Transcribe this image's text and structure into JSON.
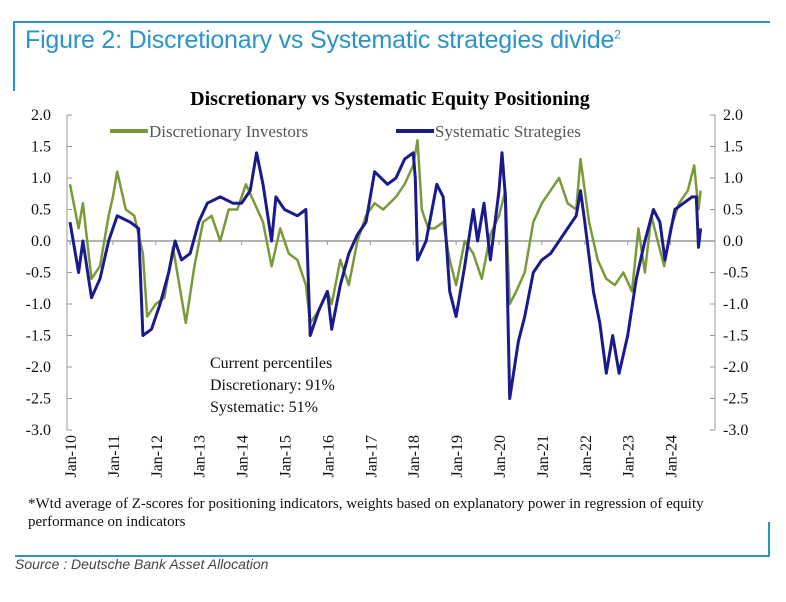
{
  "figure": {
    "title": "Figure 2: Discretionary vs Systematic strategies divide",
    "title_sup": "2",
    "footnote": "*Wtd average of Z-scores for positioning indicators, weights based on explanatory power in regression of equity performance on indicators",
    "source": "Source : Deutsche Bank Asset Allocation",
    "accent_color": "#2a93c8"
  },
  "annotation": {
    "line1": "Current percentiles",
    "line2": "Discretionary: 91%",
    "line3": "Systematic: 51%"
  },
  "chart_data": {
    "type": "line",
    "title": "Discretionary  vs Systematic Equity Positioning",
    "xlim": [
      2010,
      2024.75
    ],
    "ylim": [
      -3.0,
      2.0
    ],
    "yticks": [
      "2.0",
      "1.5",
      "1.0",
      "0.5",
      "0.0",
      "-0.5",
      "-1.0",
      "-1.5",
      "-2.0",
      "-2.5",
      "-3.0"
    ],
    "ytick_values": [
      2.0,
      1.5,
      1.0,
      0.5,
      0.0,
      -0.5,
      -1.0,
      -1.5,
      -2.0,
      -2.5,
      -3.0
    ],
    "xticks": [
      "Jan-10",
      "Jan-11",
      "Jan-12",
      "Jan-13",
      "Jan-14",
      "Jan-15",
      "Jan-16",
      "Jan-17",
      "Jan-18",
      "Jan-19",
      "Jan-20",
      "Jan-21",
      "Jan-22",
      "Jan-23",
      "Jan-24"
    ],
    "xtick_values": [
      2010,
      2011,
      2012,
      2013,
      2014,
      2015,
      2016,
      2017,
      2018,
      2019,
      2020,
      2021,
      2022,
      2023,
      2024
    ],
    "dual_y_axis": true,
    "zero_line": true,
    "grid": false,
    "legend_position": "top",
    "series": [
      {
        "name": "Discretionary Investors",
        "color": "#7a9a3a",
        "points": [
          [
            2010.0,
            0.9
          ],
          [
            2010.2,
            0.2
          ],
          [
            2010.3,
            0.6
          ],
          [
            2010.5,
            -0.6
          ],
          [
            2010.7,
            -0.4
          ],
          [
            2010.9,
            0.4
          ],
          [
            2011.0,
            0.7
          ],
          [
            2011.1,
            1.1
          ],
          [
            2011.3,
            0.5
          ],
          [
            2011.5,
            0.4
          ],
          [
            2011.7,
            -0.2
          ],
          [
            2011.8,
            -1.2
          ],
          [
            2012.0,
            -1.0
          ],
          [
            2012.2,
            -0.9
          ],
          [
            2012.4,
            -0.1
          ],
          [
            2012.6,
            -0.9
          ],
          [
            2012.7,
            -1.3
          ],
          [
            2012.9,
            -0.4
          ],
          [
            2013.1,
            0.3
          ],
          [
            2013.3,
            0.4
          ],
          [
            2013.5,
            0.0
          ],
          [
            2013.7,
            0.5
          ],
          [
            2013.9,
            0.5
          ],
          [
            2014.1,
            0.9
          ],
          [
            2014.3,
            0.6
          ],
          [
            2014.5,
            0.3
          ],
          [
            2014.7,
            -0.4
          ],
          [
            2014.9,
            0.2
          ],
          [
            2015.1,
            -0.2
          ],
          [
            2015.3,
            -0.3
          ],
          [
            2015.5,
            -0.7
          ],
          [
            2015.6,
            -1.3
          ],
          [
            2015.8,
            -1.1
          ],
          [
            2016.0,
            -0.8
          ],
          [
            2016.1,
            -1.0
          ],
          [
            2016.3,
            -0.3
          ],
          [
            2016.5,
            -0.7
          ],
          [
            2016.7,
            0.0
          ],
          [
            2016.9,
            0.4
          ],
          [
            2017.1,
            0.6
          ],
          [
            2017.3,
            0.5
          ],
          [
            2017.6,
            0.7
          ],
          [
            2017.8,
            0.9
          ],
          [
            2018.0,
            1.2
          ],
          [
            2018.1,
            1.6
          ],
          [
            2018.2,
            0.5
          ],
          [
            2018.35,
            0.2
          ],
          [
            2018.5,
            0.2
          ],
          [
            2018.7,
            0.3
          ],
          [
            2018.85,
            -0.3
          ],
          [
            2019.0,
            -0.7
          ],
          [
            2019.2,
            0.0
          ],
          [
            2019.4,
            -0.2
          ],
          [
            2019.6,
            -0.6
          ],
          [
            2019.8,
            0.1
          ],
          [
            2020.0,
            0.4
          ],
          [
            2020.15,
            0.8
          ],
          [
            2020.25,
            -1.0
          ],
          [
            2020.4,
            -0.8
          ],
          [
            2020.6,
            -0.5
          ],
          [
            2020.8,
            0.3
          ],
          [
            2021.0,
            0.6
          ],
          [
            2021.2,
            0.8
          ],
          [
            2021.4,
            1.0
          ],
          [
            2021.6,
            0.6
          ],
          [
            2021.8,
            0.5
          ],
          [
            2021.9,
            1.3
          ],
          [
            2022.1,
            0.3
          ],
          [
            2022.3,
            -0.3
          ],
          [
            2022.5,
            -0.6
          ],
          [
            2022.7,
            -0.7
          ],
          [
            2022.9,
            -0.5
          ],
          [
            2023.1,
            -0.8
          ],
          [
            2023.25,
            0.2
          ],
          [
            2023.4,
            -0.5
          ],
          [
            2023.55,
            0.4
          ],
          [
            2023.7,
            0.0
          ],
          [
            2023.85,
            -0.4
          ],
          [
            2024.0,
            0.2
          ],
          [
            2024.2,
            0.6
          ],
          [
            2024.4,
            0.8
          ],
          [
            2024.55,
            1.2
          ],
          [
            2024.65,
            0.5
          ],
          [
            2024.7,
            0.8
          ]
        ]
      },
      {
        "name": "Systematic Strategies",
        "color": "#1a1a8c",
        "points": [
          [
            2010.0,
            0.3
          ],
          [
            2010.2,
            -0.5
          ],
          [
            2010.3,
            0.0
          ],
          [
            2010.5,
            -0.9
          ],
          [
            2010.7,
            -0.6
          ],
          [
            2010.9,
            0.0
          ],
          [
            2011.1,
            0.4
          ],
          [
            2011.4,
            0.3
          ],
          [
            2011.6,
            0.2
          ],
          [
            2011.7,
            -1.5
          ],
          [
            2011.9,
            -1.4
          ],
          [
            2012.1,
            -1.0
          ],
          [
            2012.3,
            -0.5
          ],
          [
            2012.45,
            0.0
          ],
          [
            2012.6,
            -0.3
          ],
          [
            2012.8,
            -0.2
          ],
          [
            2013.0,
            0.3
          ],
          [
            2013.2,
            0.6
          ],
          [
            2013.5,
            0.7
          ],
          [
            2013.8,
            0.6
          ],
          [
            2014.0,
            0.6
          ],
          [
            2014.2,
            0.8
          ],
          [
            2014.35,
            1.4
          ],
          [
            2014.5,
            0.9
          ],
          [
            2014.7,
            0.0
          ],
          [
            2014.8,
            0.7
          ],
          [
            2015.0,
            0.5
          ],
          [
            2015.3,
            0.4
          ],
          [
            2015.5,
            0.5
          ],
          [
            2015.6,
            -1.5
          ],
          [
            2015.8,
            -1.1
          ],
          [
            2016.0,
            -0.8
          ],
          [
            2016.1,
            -1.4
          ],
          [
            2016.3,
            -0.7
          ],
          [
            2016.5,
            -0.2
          ],
          [
            2016.7,
            0.1
          ],
          [
            2016.9,
            0.3
          ],
          [
            2017.1,
            1.1
          ],
          [
            2017.4,
            0.9
          ],
          [
            2017.6,
            1.0
          ],
          [
            2017.8,
            1.3
          ],
          [
            2018.0,
            1.4
          ],
          [
            2018.05,
            1.0
          ],
          [
            2018.1,
            -0.3
          ],
          [
            2018.3,
            0.0
          ],
          [
            2018.55,
            0.9
          ],
          [
            2018.7,
            0.7
          ],
          [
            2018.85,
            -0.8
          ],
          [
            2019.0,
            -1.2
          ],
          [
            2019.2,
            -0.4
          ],
          [
            2019.4,
            0.5
          ],
          [
            2019.5,
            0.0
          ],
          [
            2019.65,
            0.6
          ],
          [
            2019.8,
            -0.3
          ],
          [
            2020.0,
            0.8
          ],
          [
            2020.07,
            1.4
          ],
          [
            2020.15,
            0.7
          ],
          [
            2020.25,
            -2.5
          ],
          [
            2020.45,
            -1.6
          ],
          [
            2020.6,
            -1.2
          ],
          [
            2020.8,
            -0.5
          ],
          [
            2021.0,
            -0.3
          ],
          [
            2021.2,
            -0.2
          ],
          [
            2021.4,
            0.0
          ],
          [
            2021.6,
            0.2
          ],
          [
            2021.8,
            0.4
          ],
          [
            2021.9,
            0.8
          ],
          [
            2022.0,
            0.3
          ],
          [
            2022.2,
            -0.8
          ],
          [
            2022.35,
            -1.3
          ],
          [
            2022.5,
            -2.1
          ],
          [
            2022.65,
            -1.5
          ],
          [
            2022.8,
            -2.1
          ],
          [
            2023.0,
            -1.5
          ],
          [
            2023.2,
            -0.6
          ],
          [
            2023.4,
            0.0
          ],
          [
            2023.6,
            0.5
          ],
          [
            2023.75,
            0.3
          ],
          [
            2023.87,
            -0.3
          ],
          [
            2024.1,
            0.5
          ],
          [
            2024.3,
            0.6
          ],
          [
            2024.5,
            0.7
          ],
          [
            2024.6,
            0.7
          ],
          [
            2024.65,
            -0.1
          ],
          [
            2024.7,
            0.2
          ]
        ]
      }
    ]
  }
}
